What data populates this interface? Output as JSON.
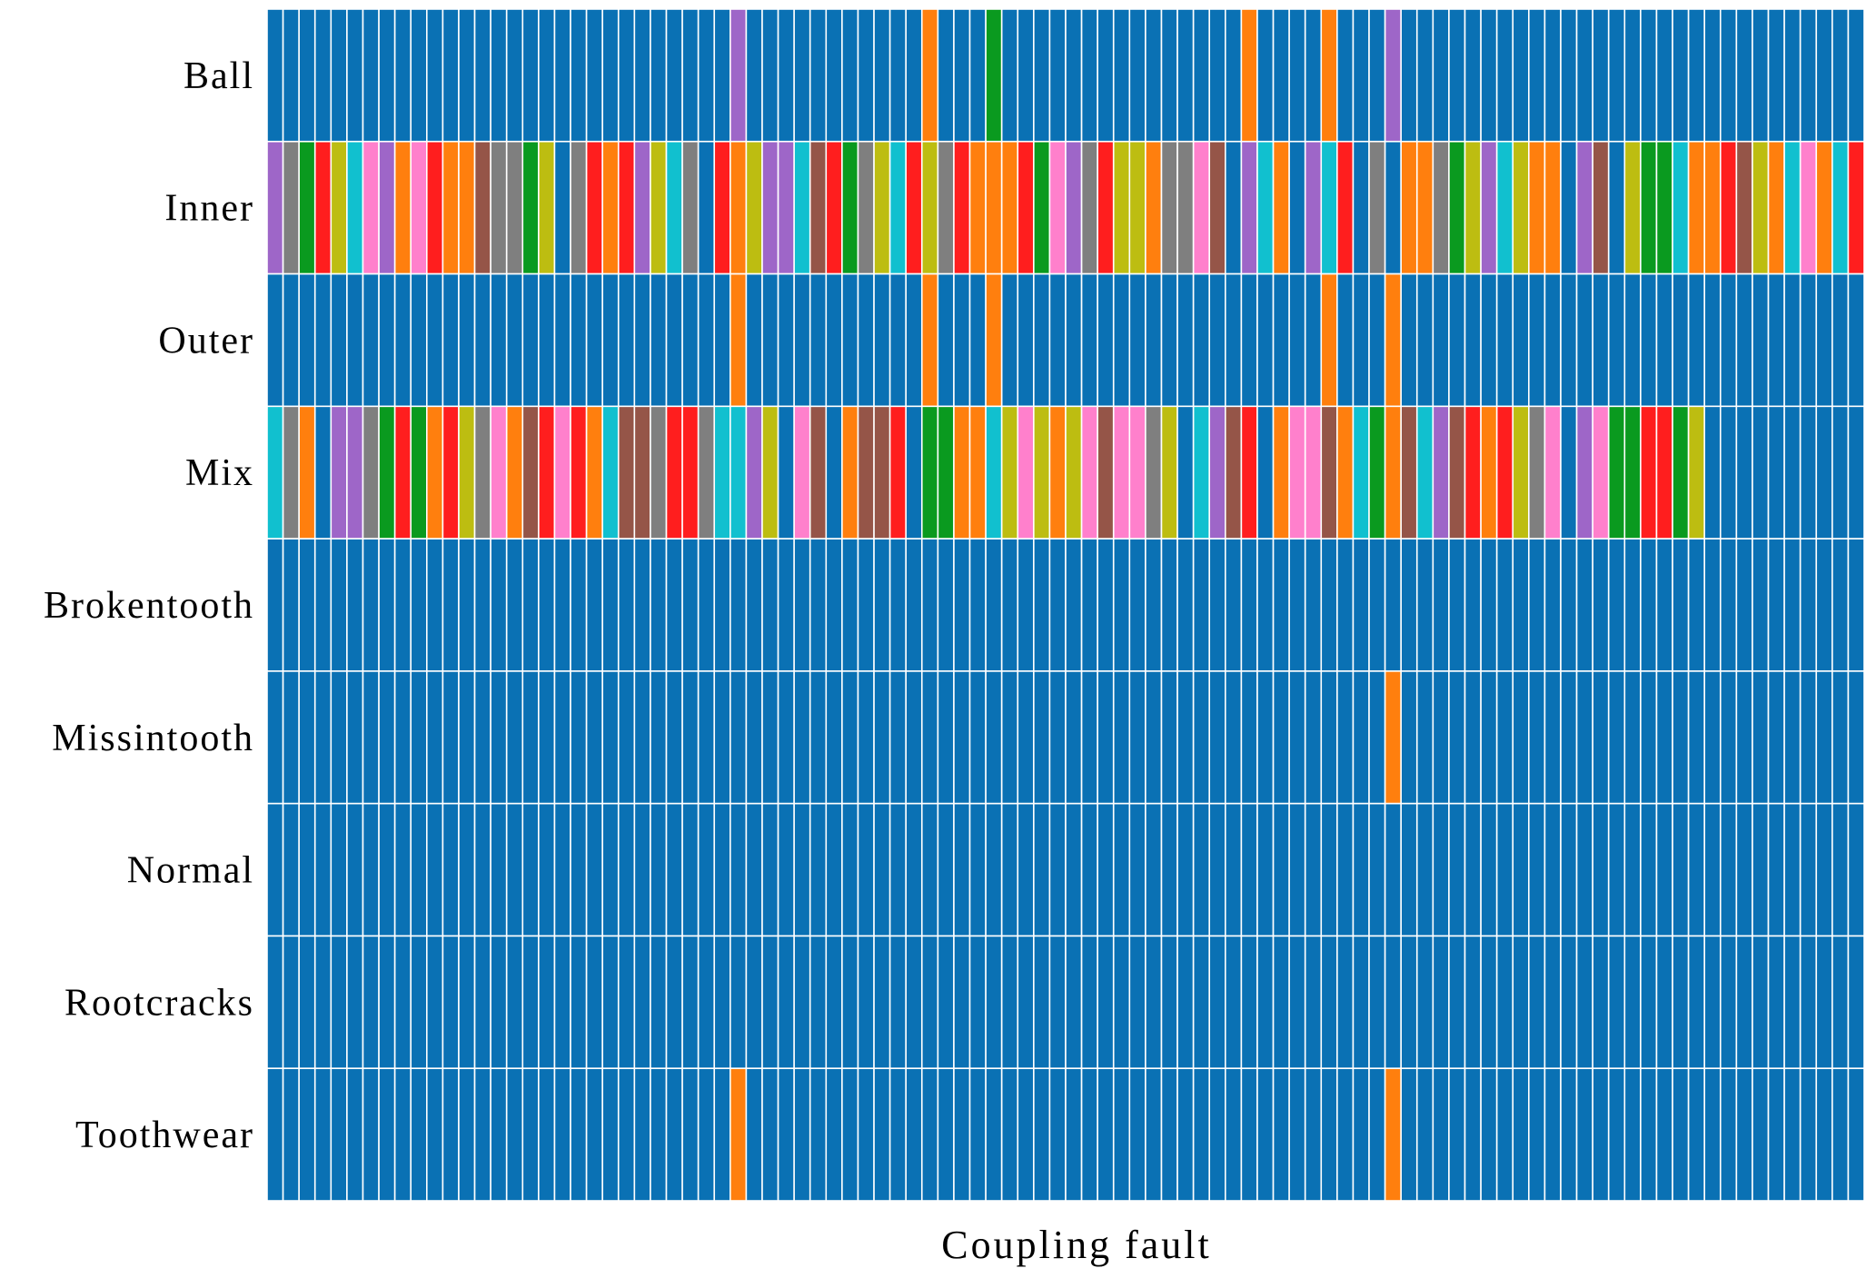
{
  "chart_data": {
    "type": "heatmap",
    "title": "",
    "xlabel": "Coupling fault",
    "ylabel": "",
    "grid": true,
    "legend": "none",
    "num_columns": 100,
    "palette": {
      "blue": "#0A71B4",
      "orange": "#FF7F0E",
      "green": "#0A9A1F",
      "red": "#FF1E1E",
      "purple": "#9E66C8",
      "brown": "#955548",
      "pink": "#FF80CC",
      "gray": "#7F7F7F",
      "olive": "#BDBD11",
      "cyan": "#11C0CF"
    },
    "rows": [
      {
        "label": "Ball",
        "default": "blue",
        "overrides": {
          "29": "purple",
          "41": "orange",
          "45": "green",
          "61": "orange",
          "66": "orange",
          "70": "purple"
        }
      },
      {
        "label": "Inner",
        "cells": [
          "purple",
          "gray",
          "green",
          "red",
          "olive",
          "cyan",
          "pink",
          "purple",
          "orange",
          "pink",
          "red",
          "orange",
          "orange",
          "brown",
          "gray",
          "gray",
          "green",
          "olive",
          "blue",
          "gray",
          "red",
          "orange",
          "red",
          "purple",
          "olive",
          "cyan",
          "gray",
          "blue",
          "red",
          "orange",
          "olive",
          "purple",
          "purple",
          "cyan",
          "brown",
          "red",
          "green",
          "gray",
          "olive",
          "cyan",
          "red",
          "olive",
          "gray",
          "red",
          "orange",
          "orange",
          "orange",
          "red",
          "green",
          "pink",
          "purple",
          "gray",
          "red",
          "olive",
          "olive",
          "orange",
          "gray",
          "gray",
          "pink",
          "brown",
          "blue",
          "purple",
          "cyan",
          "orange",
          "blue",
          "purple",
          "cyan",
          "red",
          "blue",
          "gray",
          "blue",
          "orange",
          "orange",
          "gray",
          "green",
          "olive",
          "purple",
          "cyan",
          "olive",
          "orange",
          "orange",
          "blue",
          "purple",
          "brown",
          "blue",
          "olive",
          "green",
          "green",
          "cyan",
          "orange",
          "orange",
          "red",
          "brown",
          "olive",
          "orange",
          "cyan",
          "pink",
          "orange",
          "cyan",
          "red"
        ]
      },
      {
        "label": "Outer",
        "default": "blue",
        "overrides": {
          "29": "orange",
          "41": "orange",
          "45": "orange",
          "66": "orange",
          "70": "orange"
        }
      },
      {
        "label": "Mix",
        "cells": [
          "cyan",
          "gray",
          "orange",
          "blue",
          "purple",
          "purple",
          "gray",
          "green",
          "red",
          "green",
          "orange",
          "red",
          "olive",
          "gray",
          "pink",
          "orange",
          "brown",
          "red",
          "pink",
          "red",
          "orange",
          "cyan",
          "brown",
          "brown",
          "gray",
          "red",
          "red",
          "gray",
          "cyan",
          "cyan",
          "purple",
          "olive",
          "blue",
          "pink",
          "brown",
          "blue",
          "orange",
          "brown",
          "brown",
          "red",
          "blue",
          "green",
          "green",
          "orange",
          "orange",
          "cyan",
          "olive",
          "pink",
          "olive",
          "orange",
          "olive",
          "pink",
          "brown",
          "pink",
          "pink",
          "gray",
          "olive",
          "blue",
          "cyan",
          "purple",
          "brown",
          "red",
          "blue",
          "orange",
          "pink",
          "pink",
          "brown",
          "orange",
          "cyan",
          "green",
          "orange",
          "brown",
          "cyan",
          "purple",
          "brown",
          "red",
          "orange",
          "red",
          "olive",
          "gray",
          "pink",
          "blue",
          "purple",
          "pink",
          "green",
          "green",
          "red",
          "red",
          "green",
          "olive",
          "blue",
          "blue",
          "blue",
          "blue",
          "blue",
          "blue",
          "blue",
          "blue",
          "blue",
          "blue"
        ]
      },
      {
        "label": "Brokentooth",
        "default": "blue",
        "overrides": {}
      },
      {
        "label": "Missintooth",
        "default": "blue",
        "overrides": {
          "70": "orange"
        }
      },
      {
        "label": "Normal",
        "default": "blue",
        "overrides": {}
      },
      {
        "label": "Rootcracks",
        "default": "blue",
        "overrides": {}
      },
      {
        "label": "Toothwear",
        "default": "blue",
        "overrides": {
          "29": "orange",
          "70": "orange"
        }
      }
    ]
  }
}
